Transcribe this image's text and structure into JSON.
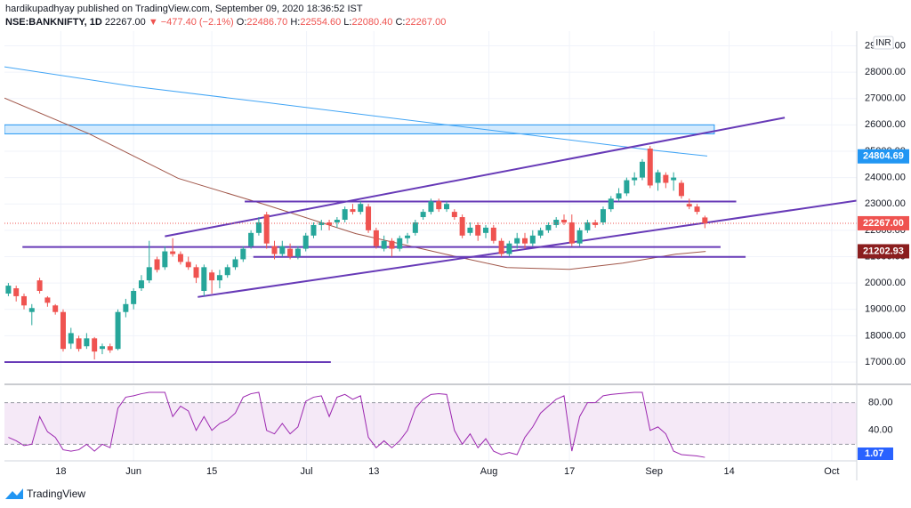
{
  "header": {
    "publisher": "hardikupadhyay published on TradingView.com, September 09, 2020 18:36:52 IST",
    "symbol": "NSE:BANKNIFTY, 1D",
    "last": "22267.00",
    "change": "▼ −477.40 (−2.1%)",
    "ohlc": [
      {
        "label": "O:",
        "value": "22486.70"
      },
      {
        "label": "H:",
        "value": "22554.60"
      },
      {
        "label": "L:",
        "value": "22080.40"
      },
      {
        "label": "C:",
        "value": "22267.00"
      }
    ]
  },
  "footer": {
    "brand": "TradingView"
  },
  "chart_data": {
    "type": "candlestick",
    "currency": "INR",
    "up_color": "#26a69a",
    "down_color": "#ef5350",
    "grid": true,
    "xlim": [
      -0.5,
      108.4
    ],
    "xticks": [
      {
        "value": 6.7,
        "label": "18"
      },
      {
        "value": 16,
        "label": "Jun"
      },
      {
        "value": 26,
        "label": "15"
      },
      {
        "value": 38.1,
        "label": "Jul"
      },
      {
        "value": 46.7,
        "label": "13"
      },
      {
        "value": 61.4,
        "label": "Aug"
      },
      {
        "value": 71.7,
        "label": "17"
      },
      {
        "value": 82.5,
        "label": "Sep"
      },
      {
        "value": 92.1,
        "label": "14"
      },
      {
        "value": 105.2,
        "label": "Oct"
      }
    ],
    "ylim": [
      16190,
      29555
    ],
    "yticks": [
      {
        "value": 17000,
        "label": "17000.00"
      },
      {
        "value": 18000,
        "label": "18000.00"
      },
      {
        "value": 19000,
        "label": "19000.00"
      },
      {
        "value": 20000,
        "label": "20000.00"
      },
      {
        "value": 21000,
        "label": "21000.00"
      },
      {
        "value": 22000,
        "label": "22000.00"
      },
      {
        "value": 23000,
        "label": "23000.00"
      },
      {
        "value": 24000,
        "label": "24000.00"
      },
      {
        "value": 25000,
        "label": "25000.00"
      },
      {
        "value": 26000,
        "label": "26000.00"
      },
      {
        "value": 27000,
        "label": "27000.00"
      },
      {
        "value": 28000,
        "label": "28000.00"
      },
      {
        "value": 29000,
        "label": "29000.00"
      }
    ],
    "open": [
      19600,
      19800,
      19500,
      18900,
      20100,
      19450,
      19150,
      18900,
      17700,
      17900,
      17600,
      17900,
      17500,
      17600,
      17500,
      18900,
      19200,
      19800,
      20100,
      20900,
      20600,
      21200,
      21100,
      20800,
      20600,
      19700,
      20400,
      20100,
      20300,
      20600,
      20900,
      21400,
      21900,
      22600,
      21400,
      21100,
      21300,
      21000,
      21300,
      21800,
      22200,
      22300,
      22300,
      22400,
      22800,
      22700,
      22900,
      22000,
      21300,
      21600,
      21300,
      21700,
      21900,
      22500,
      22700,
      23100,
      22800,
      22700,
      22500,
      21900,
      22200,
      21900,
      22100,
      21600,
      21100,
      21500,
      21700,
      21500,
      21800,
      22000,
      22200,
      22400,
      22300,
      21500,
      22000,
      22300,
      22300,
      22800,
      23200,
      23400,
      23900,
      24000,
      25100,
      23800,
      24100,
      23900,
      23800,
      23000,
      22900,
      22486.7
    ],
    "high": [
      20000,
      19900,
      19600,
      19200,
      20200,
      19500,
      19200,
      19000,
      18300,
      18000,
      18100,
      17950,
      17700,
      17700,
      19000,
      19400,
      19800,
      20300,
      21600,
      21000,
      21400,
      21700,
      21200,
      21000,
      20700,
      20700,
      20500,
      20500,
      20700,
      21000,
      21400,
      22000,
      22500,
      22700,
      21600,
      21600,
      21500,
      21400,
      21900,
      22300,
      22400,
      22400,
      22500,
      22900,
      23000,
      23100,
      23000,
      22100,
      21800,
      21700,
      21800,
      21900,
      22400,
      22800,
      23200,
      23200,
      23100,
      22800,
      22600,
      22300,
      22300,
      22200,
      22200,
      21700,
      21600,
      21900,
      21900,
      22000,
      22100,
      22300,
      22500,
      22600,
      22600,
      22100,
      22400,
      22400,
      22900,
      23300,
      23600,
      24000,
      24200,
      24700,
      25200,
      24300,
      24200,
      24200,
      23900,
      23200,
      23000,
      22554.6
    ],
    "low": [
      19500,
      19300,
      19000,
      18400,
      19600,
      19100,
      18800,
      17400,
      17500,
      17400,
      17500,
      17100,
      17300,
      17350,
      17450,
      18700,
      19000,
      19700,
      20000,
      20400,
      20500,
      21000,
      20700,
      20500,
      20000,
      19500,
      19600,
      19800,
      20200,
      20500,
      20800,
      21300,
      21800,
      21300,
      20900,
      21000,
      20900,
      20900,
      21200,
      21700,
      22000,
      22000,
      22100,
      22300,
      22600,
      22600,
      21900,
      21300,
      21200,
      21000,
      21200,
      21500,
      21800,
      22400,
      22600,
      22700,
      22700,
      22400,
      21700,
      21800,
      21600,
      21700,
      21500,
      21000,
      21000,
      21300,
      21300,
      21400,
      21700,
      21900,
      22100,
      22200,
      21400,
      21400,
      21900,
      22100,
      22200,
      22700,
      23100,
      23300,
      23700,
      23900,
      23600,
      23500,
      23600,
      23500,
      23200,
      22800,
      22600,
      22080.4
    ],
    "close": [
      19900,
      19500,
      19150,
      19050,
      19700,
      19250,
      18900,
      17500,
      18100,
      17500,
      17900,
      17400,
      17600,
      17450,
      18900,
      19200,
      19700,
      20100,
      20600,
      20500,
      21200,
      21100,
      20800,
      20600,
      20200,
      20600,
      20100,
      20300,
      20600,
      20900,
      21300,
      21900,
      22300,
      21500,
      21100,
      21400,
      21000,
      21300,
      21800,
      22200,
      22300,
      22200,
      22400,
      22800,
      22700,
      23000,
      22000,
      21400,
      21600,
      21300,
      21700,
      21800,
      22300,
      22700,
      23100,
      22800,
      23000,
      22500,
      21800,
      22100,
      21800,
      22100,
      21600,
      21100,
      21500,
      21700,
      21500,
      21800,
      22000,
      22200,
      22400,
      22300,
      21500,
      22000,
      22300,
      22200,
      22800,
      23200,
      23400,
      23900,
      24000,
      24600,
      23700,
      24200,
      23800,
      24000,
      23300,
      22900,
      22700,
      22267
    ],
    "ma_lines": [
      {
        "color": "#42a5f5",
        "x": [
          -0.5,
          16,
          33,
          46.7,
          67.1,
          81.9,
          89.3
        ],
        "values": [
          28201,
          27457,
          26848,
          26340,
          25596,
          25054,
          24817
        ]
      },
      {
        "color": "#a1574a",
        "x": [
          -0.5,
          10.3,
          21.7,
          33,
          44.4,
          55.8,
          63.7,
          71.7,
          78.5,
          85.3,
          89.1
        ],
        "values": [
          27017,
          25663,
          23971,
          22956,
          21873,
          21095,
          20587,
          20519,
          20756,
          21095,
          21196
        ]
      }
    ],
    "drawings": {
      "color": "#673ab7",
      "lines": [
        {
          "x": [
            -0.5,
            41.2
          ],
          "values": [
            17000,
            17000
          ]
        },
        {
          "x": [
            1.8,
            91
          ],
          "values": [
            21365,
            21365
          ]
        },
        {
          "x": [
            31.3,
            94.2
          ],
          "values": [
            20993,
            20993
          ]
        },
        {
          "x": [
            30.2,
            93
          ],
          "values": [
            23091,
            23091
          ]
        },
        {
          "x": [
            20,
            99.2
          ],
          "values": [
            21772,
            26272
          ]
        },
        {
          "x": [
            24.2,
            108.4
          ],
          "values": [
            19470,
            23125
          ]
        }
      ],
      "zone": {
        "x": [
          -0.5,
          90.2
        ],
        "values": [
          25660,
          26000
        ],
        "color": "#2196f3"
      }
    },
    "price_markers": [
      {
        "value": 24804.69,
        "label": "24804.69",
        "color": "#2196f3"
      },
      {
        "value": 22267,
        "label": "22267.00",
        "color": "#ef5350",
        "line": true
      },
      {
        "value": 21202.93,
        "label": "21202.93",
        "color": "#8b1e1e"
      }
    ],
    "rsi": {
      "color": "#9c27b0",
      "ylim": [
        -4,
        104
      ],
      "band": [
        20,
        80
      ],
      "yticks": [
        {
          "value": 80,
          "label": "80.00"
        },
        {
          "value": 40,
          "label": "40.00"
        }
      ],
      "values": [
        30,
        25,
        18,
        20,
        60,
        38,
        30,
        12,
        10,
        12,
        20,
        10,
        20,
        15,
        72,
        88,
        90,
        93,
        95,
        95,
        95,
        60,
        75,
        68,
        40,
        60,
        40,
        50,
        55,
        65,
        88,
        93,
        95,
        40,
        35,
        50,
        35,
        45,
        82,
        88,
        90,
        60,
        88,
        92,
        85,
        90,
        30,
        15,
        25,
        15,
        25,
        40,
        72,
        85,
        92,
        93,
        92,
        40,
        20,
        35,
        15,
        28,
        10,
        5,
        8,
        5,
        30,
        45,
        65,
        75,
        85,
        90,
        10,
        60,
        80,
        80,
        90,
        92,
        93,
        94,
        95,
        95,
        40,
        45,
        35,
        10,
        5,
        4,
        3,
        1.07
      ],
      "last": {
        "value": 1.07,
        "label": "1.07"
      }
    }
  }
}
